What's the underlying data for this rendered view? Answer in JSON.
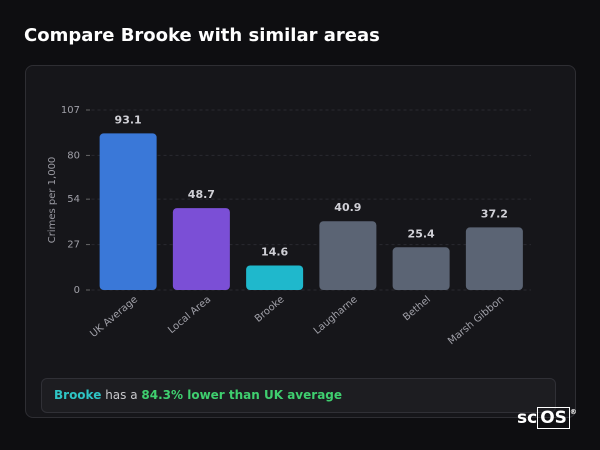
{
  "header": {
    "title": "Compare Brooke with similar areas"
  },
  "chart_data": {
    "type": "bar",
    "ylabel": "Crimes per 1,000",
    "categories": [
      "UK Average",
      "Local Area",
      "Brooke",
      "Laugharne",
      "Bethel",
      "Marsh Gibbon"
    ],
    "values": [
      93.1,
      48.7,
      14.6,
      40.9,
      25.4,
      37.2
    ],
    "colors": [
      "#3a78d8",
      "#7b4fd6",
      "#1fb8cc",
      "#5b6474",
      "#5b6474",
      "#5b6474"
    ],
    "ylim": [
      0,
      107
    ],
    "yticks": [
      0,
      27,
      54,
      80,
      107
    ],
    "grid": true
  },
  "summary": {
    "area": "Brooke",
    "text": "has a",
    "highlight": "84.3% lower than UK average"
  },
  "logo": {
    "left": "sc",
    "boxed": "OS",
    "mark": "®"
  }
}
